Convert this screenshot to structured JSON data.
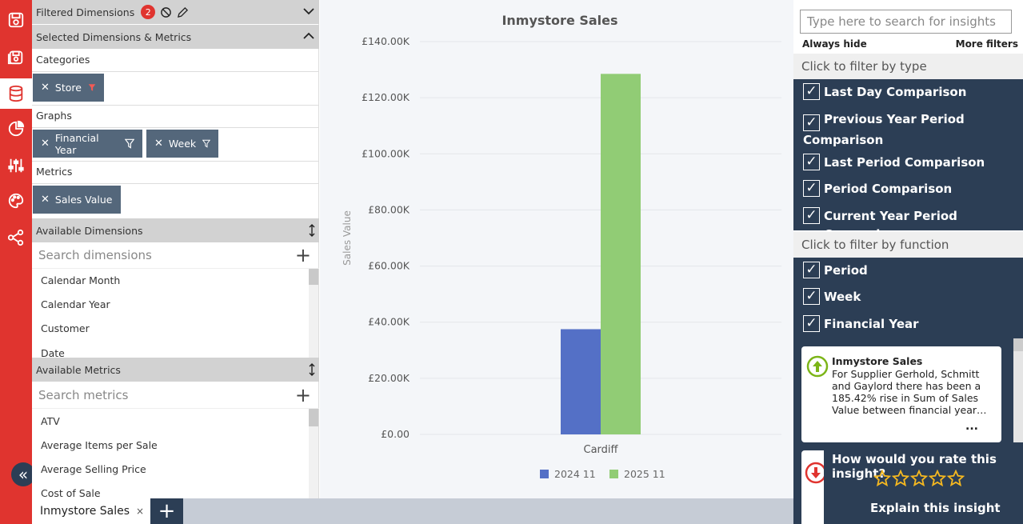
{
  "rail": {
    "items": [
      "save-icon",
      "saved-views-icon",
      "database-icon",
      "chart-pie-icon",
      "sliders-icon",
      "palette-icon",
      "share-icon"
    ],
    "active_index": 2,
    "accent": "#e0342f",
    "collapse_label": "«"
  },
  "left_panel": {
    "filtered_dimensions_label": "Filtered Dimensions",
    "filtered_count": "2",
    "selected_label": "Selected Dimensions & Metrics",
    "categories_label": "Categories",
    "categories": [
      {
        "label": "Store",
        "filter_active": true
      }
    ],
    "graphs_label": "Graphs",
    "graphs": [
      {
        "label": "Financial Year"
      },
      {
        "label": "Week"
      }
    ],
    "metrics_label": "Metrics",
    "metrics": [
      {
        "label": "Sales Value"
      }
    ],
    "available_dimensions_label": "Available Dimensions",
    "dimensions_search_placeholder": "Search dimensions",
    "dimensions": [
      "Calendar Month",
      "Calendar Year",
      "Customer",
      "Date"
    ],
    "available_metrics_label": "Available Metrics",
    "metrics_search_placeholder": "Search metrics",
    "available_metrics": [
      "ATV",
      "Average Items per Sale",
      "Average Selling Price",
      "Cost of Sale"
    ]
  },
  "tabs": {
    "active_label": "Inmystore Sales",
    "close_label": "×",
    "add_label": "+"
  },
  "chart_data": {
    "type": "bar",
    "title": "Inmystore Sales",
    "xlabel": "",
    "ylabel": "Sales Value",
    "categories": [
      "Cardiff"
    ],
    "series": [
      {
        "name": "2024 11",
        "values": [
          37500
        ],
        "color": "#5470c6"
      },
      {
        "name": "2025 11",
        "values": [
          128500
        ],
        "color": "#91cc75"
      }
    ],
    "ylim": [
      0,
      140000
    ],
    "yticks": [
      0,
      20000,
      40000,
      60000,
      80000,
      100000,
      120000,
      140000
    ],
    "ytick_labels": [
      "£0.00",
      "£20.00K",
      "£40.00K",
      "£60.00K",
      "£80.00K",
      "£100.00K",
      "£120.00K",
      "£140.00K"
    ],
    "grid": true,
    "legend_position": "bottom"
  },
  "right_panel": {
    "search_placeholder": "Type here to search for insights",
    "always_hide": "Always hide",
    "more_filters": "More filters",
    "filter_by_type_label": "Click to filter by type",
    "types": [
      "Last Day Comparison",
      "Previous Year Period Comparison",
      "Last Period Comparison",
      "Period Comparison",
      "Current Year Period Comparison"
    ],
    "filter_by_function_label": "Click to filter by function",
    "functions": [
      "Period",
      "Week",
      "Financial Year"
    ],
    "check_mark": "✓",
    "insight": {
      "title": "Inmystore Sales",
      "body": "For Supplier Gerhold, Schmitt and Gaylord there has been a 185.42% rise in Sum of Sales Value between financial year…",
      "more": "..."
    },
    "rate_question": "How would you rate this insight?",
    "stars": 5,
    "explain_label": "Explain this insight",
    "dark": "#2c3e55"
  }
}
